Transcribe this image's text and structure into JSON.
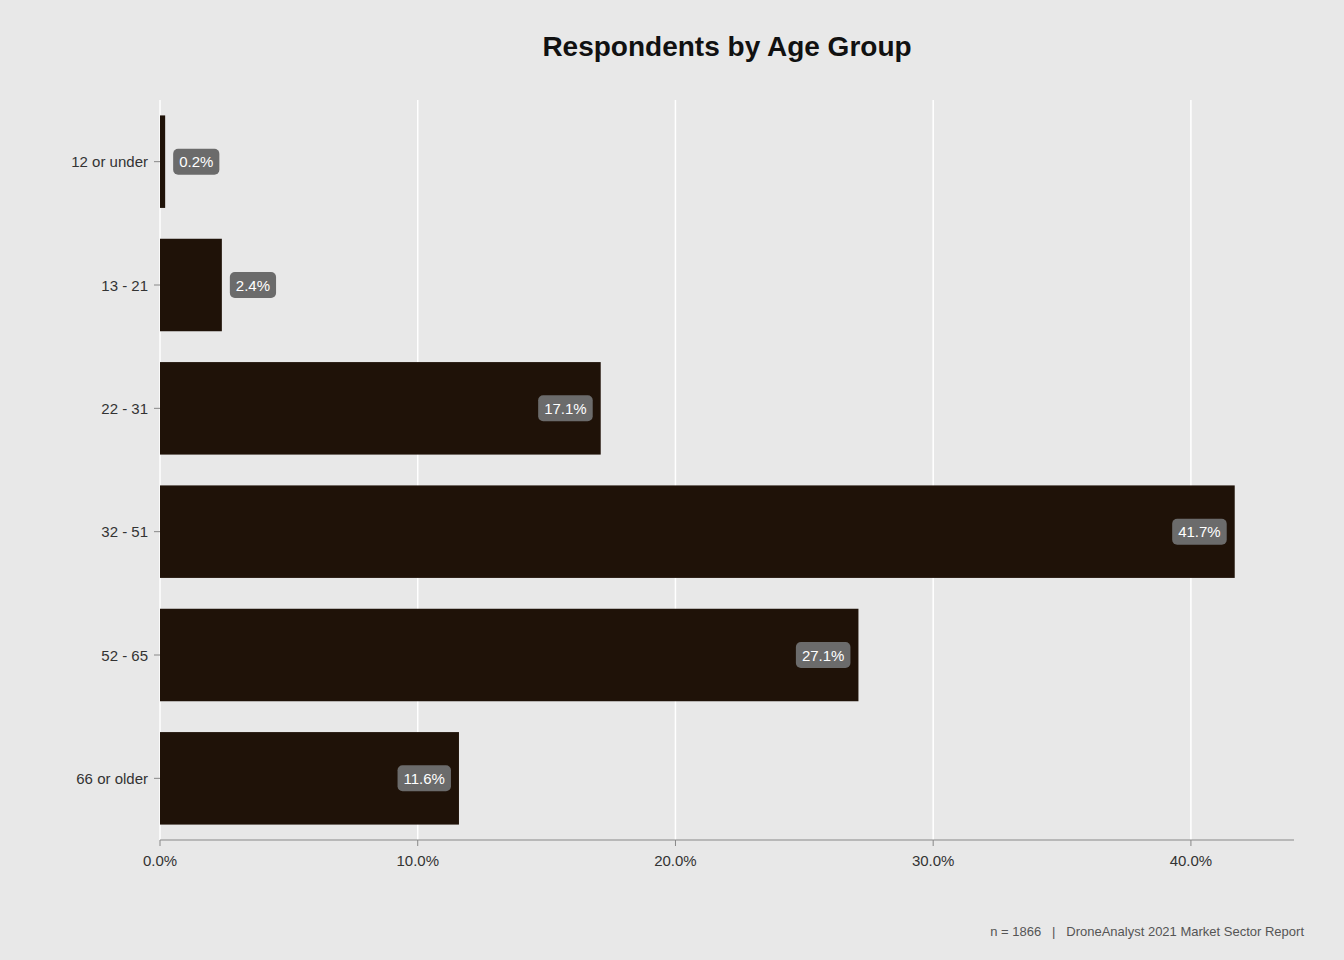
{
  "chart_data": {
    "type": "bar",
    "orientation": "horizontal",
    "title": "Respondents by Age Group",
    "categories": [
      "12 or under",
      "13 - 21",
      "22 - 31",
      "32 - 51",
      "52 - 65",
      "66 or older"
    ],
    "values": [
      0.2,
      2.4,
      17.1,
      41.7,
      27.1,
      11.6
    ],
    "value_labels": [
      "0.2%",
      "2.4%",
      "17.1%",
      "41.7%",
      "27.1%",
      "11.6%"
    ],
    "data_labels": true,
    "color": "#1f1208",
    "xlim": [
      0,
      44
    ],
    "xticks": [
      {
        "value": 0,
        "label": "0.0%"
      },
      {
        "value": 10,
        "label": "10.0%"
      },
      {
        "value": 20,
        "label": "20.0%"
      },
      {
        "value": 30,
        "label": "30.0%"
      },
      {
        "value": 40,
        "label": "40.0%"
      }
    ],
    "grid": true,
    "annotations": [
      "n = 1866   |   DroneAnalyst 2021 Market Sector Report"
    ]
  }
}
